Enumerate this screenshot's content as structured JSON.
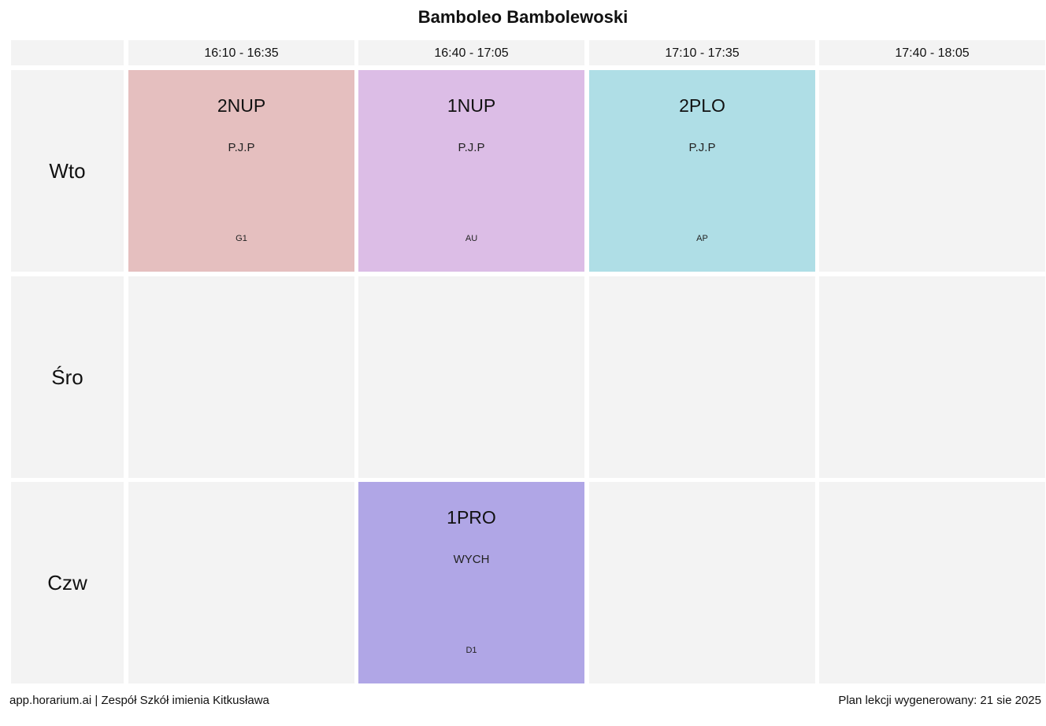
{
  "title": "Bamboleo Bambolewoski",
  "time_slots": [
    "16:10 - 16:35",
    "16:40 - 17:05",
    "17:10 - 17:35",
    "17:40 - 18:05"
  ],
  "days": [
    "Wto",
    "Śro",
    "Czw"
  ],
  "lessons": [
    {
      "day": "Wto",
      "slot": "16:10 - 16:35",
      "class": "2NUP",
      "subject": "P.J.P",
      "room": "G1",
      "color": "#e5bfbf"
    },
    {
      "day": "Wto",
      "slot": "16:40 - 17:05",
      "class": "1NUP",
      "subject": "P.J.P",
      "room": "AU",
      "color": "#dcbde6"
    },
    {
      "day": "Wto",
      "slot": "17:10 - 17:35",
      "class": "2PLO",
      "subject": "P.J.P",
      "room": "AP",
      "color": "#afdee6"
    },
    {
      "day": "Czw",
      "slot": "16:40 - 17:05",
      "class": "1PRO",
      "subject": "WYCH",
      "room": "D1",
      "color": "#b0a6e6"
    }
  ],
  "colors": {
    "empty_cell": "#f3f3f3"
  },
  "footer": {
    "left": "app.horarium.ai | Zespół Szkół imienia Kitkusława",
    "right": "Plan lekcji wygenerowany: 21 sie 2025"
  }
}
